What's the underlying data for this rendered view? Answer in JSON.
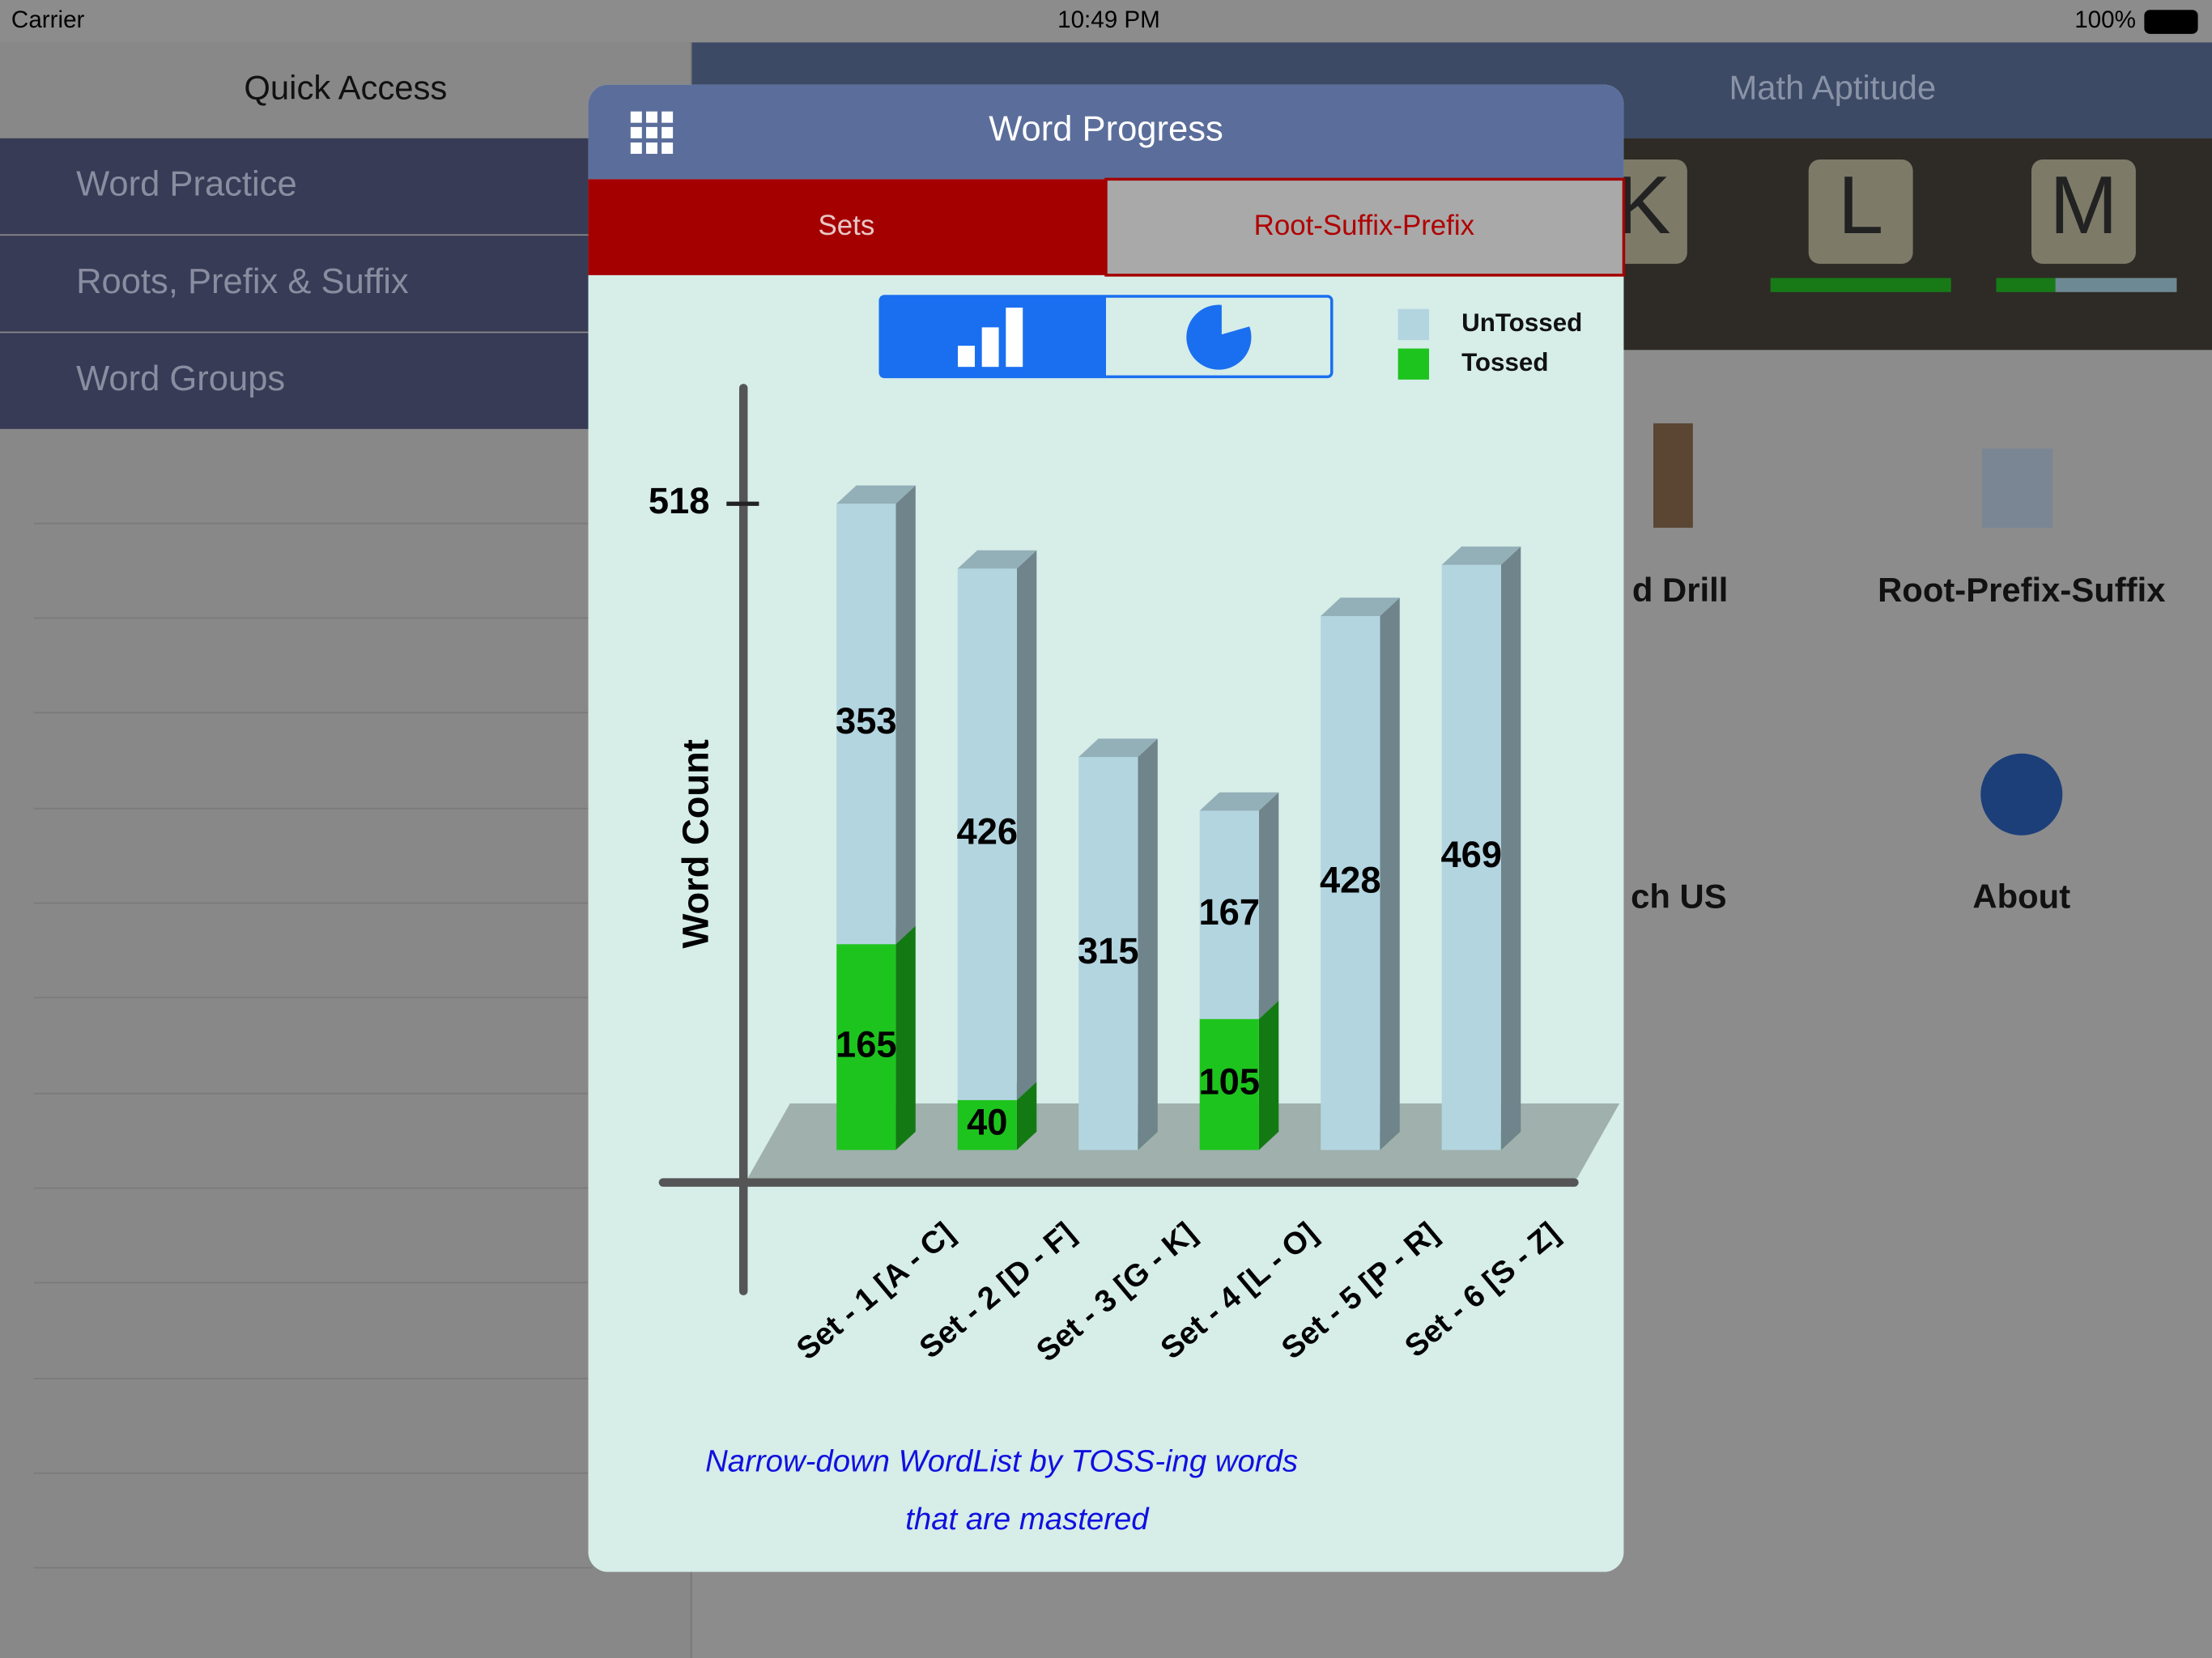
{
  "status_bar": {
    "carrier": "Carrier",
    "time": "10:49 PM",
    "battery": "100%"
  },
  "sidebar": {
    "title": "Quick Access",
    "items": [
      "Word Practice",
      "Roots, Prefix & Suffix",
      "Word Groups"
    ]
  },
  "background": {
    "nav_title": "Math Aptitude",
    "tiles": [
      "K",
      "L",
      "M"
    ],
    "icons": [
      "d Drill",
      "Root-Prefix-Suffix",
      "ch US",
      "About"
    ]
  },
  "modal": {
    "title": "Word Progress",
    "tabs": [
      "Sets",
      "Root-Suffix-Prefix"
    ],
    "footer": [
      "Narrow-down WordList by TOSS-ing words",
      "that are mastered"
    ]
  },
  "chart_data": {
    "type": "bar",
    "stacked": true,
    "y_label": "Word Count",
    "categories": [
      "Set - 1 [A - C]",
      "Set - 2 [D - F]",
      "Set - 3 [G - K]",
      "Set - 4 [L - O]",
      "Set - 5 [P - R]",
      "Set - 6 [S - Z]"
    ],
    "series": [
      {
        "name": "UnTossed",
        "color": "#b3d5e0",
        "values": [
          353,
          426,
          315,
          167,
          428,
          469
        ]
      },
      {
        "name": "Tossed",
        "color": "#1ec41e",
        "values": [
          165,
          40,
          0,
          105,
          0,
          0
        ]
      }
    ],
    "ylim": [
      0,
      518
    ],
    "yticks": [
      518
    ]
  }
}
